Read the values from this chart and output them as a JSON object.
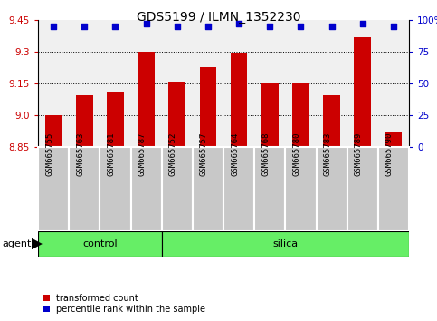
{
  "title": "GDS5199 / ILMN_1352230",
  "samples": [
    "GSM665755",
    "GSM665763",
    "GSM665781",
    "GSM665787",
    "GSM665752",
    "GSM665757",
    "GSM665764",
    "GSM665768",
    "GSM665780",
    "GSM665783",
    "GSM665789",
    "GSM665790"
  ],
  "bar_values": [
    9.0,
    9.095,
    9.105,
    9.3,
    9.16,
    9.225,
    9.293,
    9.155,
    9.148,
    9.095,
    9.37,
    8.92
  ],
  "dot_values": [
    95,
    95,
    95,
    97,
    95,
    95,
    97,
    95,
    95,
    95,
    97,
    95
  ],
  "control_count": 4,
  "ylim_left": [
    8.85,
    9.45
  ],
  "ylim_right": [
    0,
    100
  ],
  "yticks_left": [
    8.85,
    9.0,
    9.15,
    9.3,
    9.45
  ],
  "yticks_right": [
    0,
    25,
    50,
    75,
    100
  ],
  "ytick_labels_right": [
    "0",
    "25",
    "50",
    "75",
    "100%"
  ],
  "bar_color": "#CC0000",
  "dot_color": "#0000CC",
  "bar_width": 0.55,
  "agent_label": "agent",
  "legend_bar_label": "transformed count",
  "legend_dot_label": "percentile rank within the sample",
  "bg_plot": "#F0F0F0",
  "bg_fig": "#FFFFFF",
  "green_color": "#66EE66",
  "grey_box_color": "#C8C8C8",
  "title_fontsize": 10,
  "tick_fontsize": 7.5,
  "sample_fontsize": 6.5,
  "group_fontsize": 8,
  "legend_fontsize": 7
}
